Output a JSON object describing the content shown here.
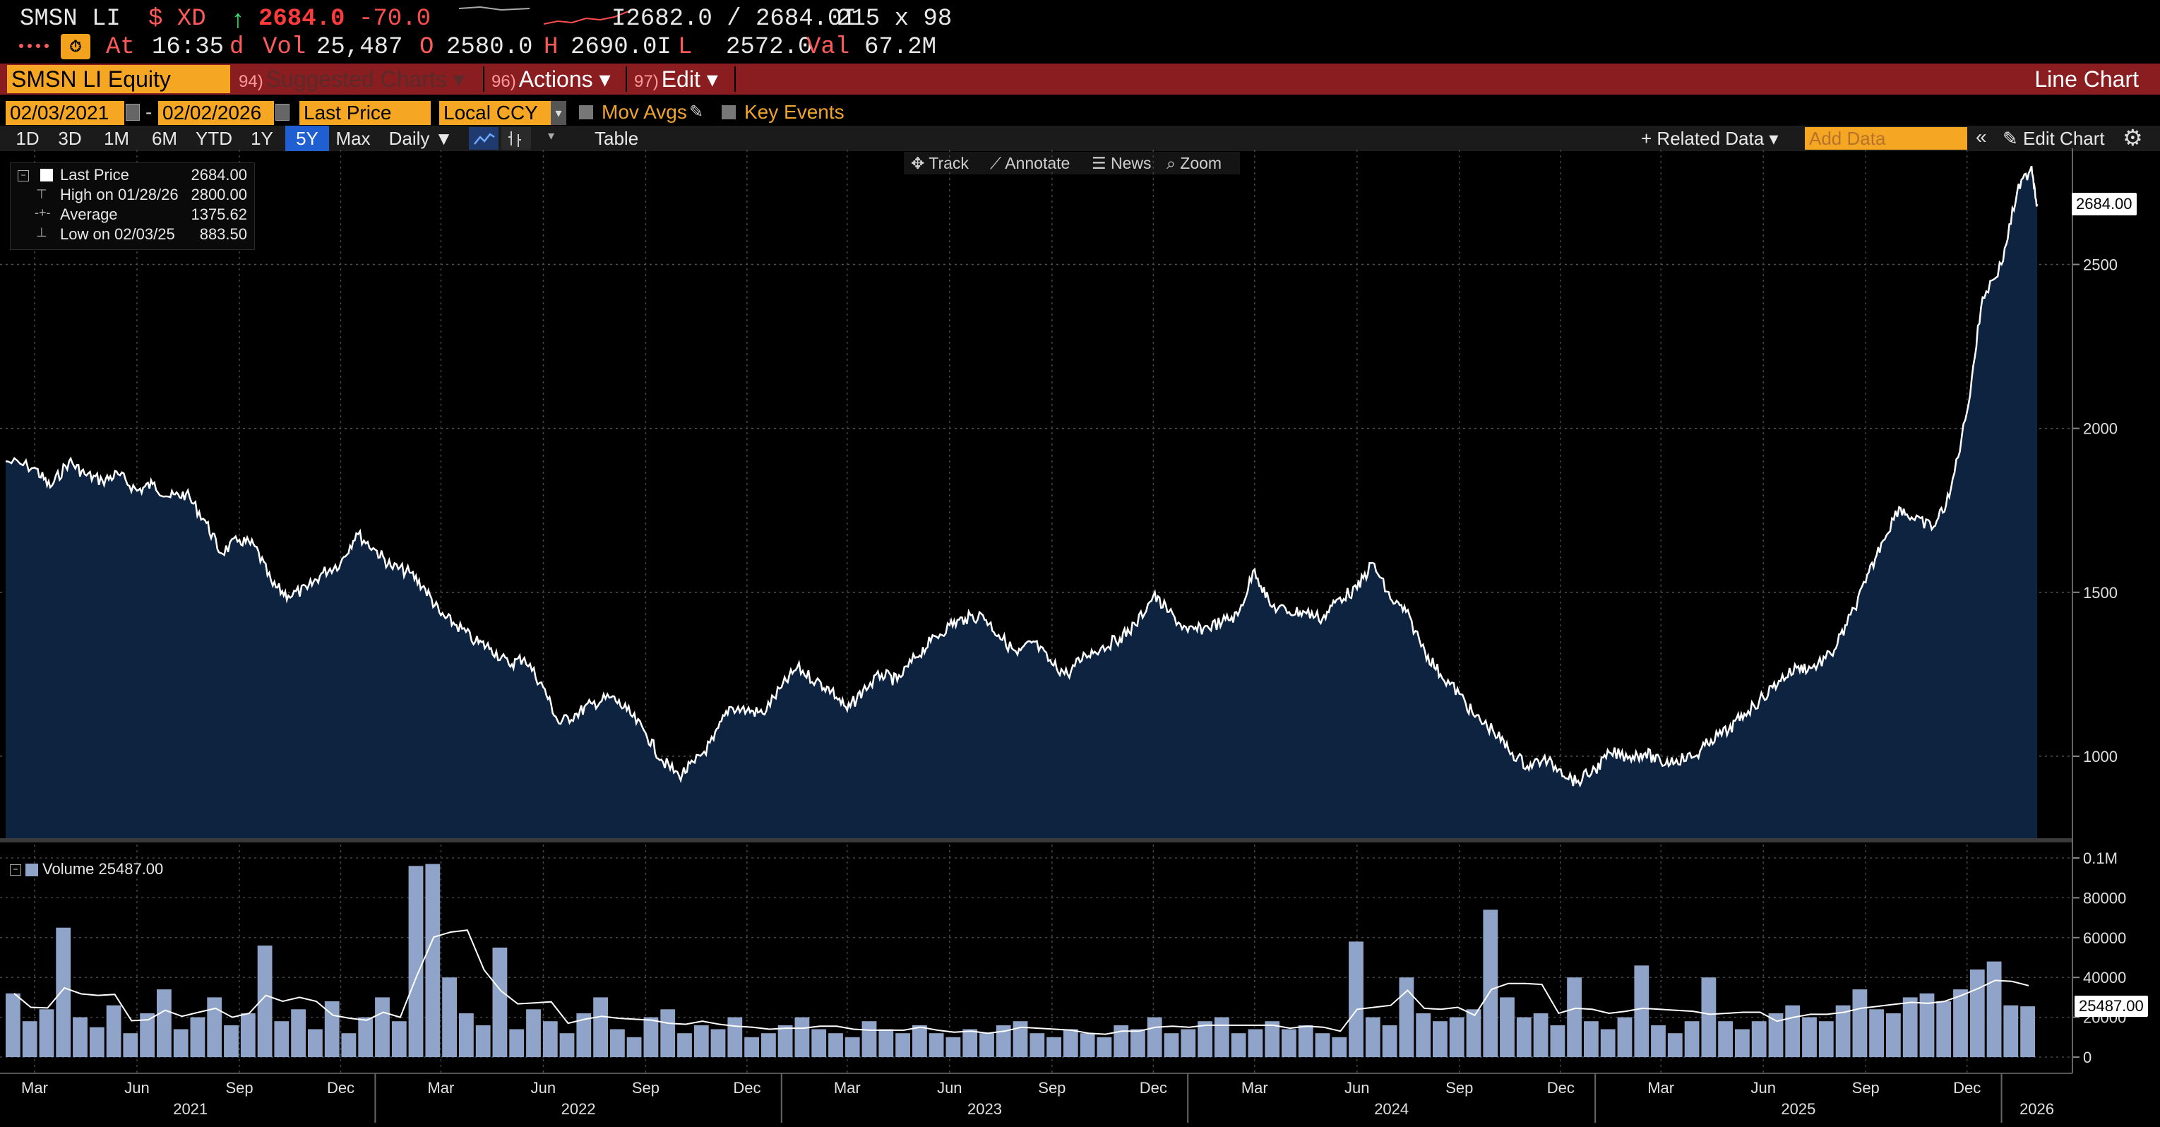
{
  "header": {
    "ticker": "SMSN LI",
    "currency": "$ XD",
    "arrow": "↑",
    "last_price": "2684.0",
    "change": "-70.0",
    "bid_ask": "I2682.0 / 2684.0I",
    "size": "215 x 98",
    "at_label": "At",
    "time": "16:35",
    "d_label": "d",
    "vol_label": "Vol",
    "vol_value": "25,487",
    "open_label": "O",
    "open_value": "2580.0",
    "high_label": "H",
    "high_value": "2690.0I",
    "low_label": "L",
    "low_value": "2572.0",
    "val_label": "Val",
    "val_value": "67.2M"
  },
  "toolbar": {
    "security": "SMSN LI Equity",
    "suggested_num": "94)",
    "suggested": "Suggested Charts",
    "actions_num": "96)",
    "actions": "Actions",
    "edit_num": "97)",
    "edit": "Edit",
    "chart_title": "Line Chart"
  },
  "options": {
    "start_date": "02/03/2021",
    "dash": "-",
    "end_date": "02/02/2026",
    "field": "Last Price",
    "currency": "Local CCY",
    "mov_avgs": "Mov Avgs",
    "key_events": "Key Events"
  },
  "timeframes": [
    "1D",
    "3D",
    "1M",
    "6M",
    "YTD",
    "1Y",
    "5Y",
    "Max"
  ],
  "active_timeframe": "5Y",
  "periodicity": "Daily",
  "table_label": "Table",
  "related_data": "Related Data",
  "add_data_placeholder": "Add Data",
  "edit_chart": "Edit Chart",
  "tools": {
    "track": "Track",
    "annotate": "Annotate",
    "news": "News",
    "zoom": "Zoom"
  },
  "legend": {
    "last_price_label": "Last Price",
    "last_price_value": "2684.00",
    "high_label": "High on 01/28/26",
    "high_value": "2800.00",
    "average_label": "Average",
    "average_value": "1375.62",
    "low_label": "Low on 02/03/25",
    "low_value": "883.50",
    "volume_label": "Volume",
    "volume_value": "25487.00"
  },
  "last_price_tag": "2684.00",
  "volume_tag": "25487.00",
  "colors": {
    "background": "#000000",
    "price_fill": "#0d2340",
    "price_line": "#ffffff",
    "volume_bars": "#8fa4c8",
    "volume_ma": "#ffffff",
    "accent_orange": "#f5a623",
    "toolbar_red": "#8a1d1f",
    "gain": "#35e36b",
    "loss": "#ff3b3b"
  },
  "chart_data": [
    {
      "type": "area",
      "series": [
        {
          "name": "Last Price",
          "x": [
            "2021-02-03",
            "2021-03-01",
            "2021-03-15",
            "2021-04-01",
            "2021-04-15",
            "2021-05-01",
            "2021-05-15",
            "2021-06-01",
            "2021-06-15",
            "2021-07-01",
            "2021-07-15",
            "2021-08-01",
            "2021-08-15",
            "2021-09-01",
            "2021-09-15",
            "2021-10-01",
            "2021-10-15",
            "2021-11-01",
            "2021-11-15",
            "2021-12-01",
            "2021-12-15",
            "2022-01-01",
            "2022-01-15",
            "2022-02-01",
            "2022-02-15",
            "2022-03-01",
            "2022-03-15",
            "2022-04-01",
            "2022-04-15",
            "2022-05-01",
            "2022-05-15",
            "2022-06-01",
            "2022-06-15",
            "2022-07-01",
            "2022-07-15",
            "2022-08-01",
            "2022-08-15",
            "2022-09-01",
            "2022-09-15",
            "2022-10-01",
            "2022-10-15",
            "2022-11-01",
            "2022-11-15",
            "2022-12-01",
            "2022-12-15",
            "2023-01-01",
            "2023-01-15",
            "2023-02-01",
            "2023-02-15",
            "2023-03-01",
            "2023-03-15",
            "2023-04-01",
            "2023-04-15",
            "2023-05-01",
            "2023-05-15",
            "2023-06-01",
            "2023-06-15",
            "2023-07-01",
            "2023-07-15",
            "2023-08-01",
            "2023-08-15",
            "2023-09-01",
            "2023-09-15",
            "2023-10-01",
            "2023-10-15",
            "2023-11-01",
            "2023-11-15",
            "2023-12-01",
            "2023-12-15",
            "2024-01-01",
            "2024-01-15",
            "2024-02-01",
            "2024-02-15",
            "2024-03-01",
            "2024-03-15",
            "2024-04-01",
            "2024-04-15",
            "2024-05-01",
            "2024-05-15",
            "2024-06-01",
            "2024-06-15",
            "2024-07-01",
            "2024-07-15",
            "2024-08-01",
            "2024-08-15",
            "2024-09-01",
            "2024-09-15",
            "2024-10-01",
            "2024-10-15",
            "2024-11-01",
            "2024-11-15",
            "2024-12-01",
            "2024-12-15",
            "2025-01-01",
            "2025-01-15",
            "2025-02-01",
            "2025-02-15",
            "2025-03-01",
            "2025-03-15",
            "2025-04-01",
            "2025-04-15",
            "2025-05-01",
            "2025-05-15",
            "2025-06-01",
            "2025-06-15",
            "2025-07-01",
            "2025-07-15",
            "2025-08-01",
            "2025-08-15",
            "2025-09-01",
            "2025-09-15",
            "2025-10-01",
            "2025-10-15",
            "2025-11-01",
            "2025-11-15",
            "2025-12-01",
            "2025-12-15",
            "2026-01-01",
            "2026-01-15",
            "2026-01-28",
            "2026-02-02"
          ],
          "values": [
            1900,
            1880,
            1820,
            1900,
            1860,
            1840,
            1860,
            1810,
            1830,
            1790,
            1800,
            1720,
            1620,
            1660,
            1640,
            1520,
            1490,
            1510,
            1560,
            1590,
            1680,
            1630,
            1580,
            1560,
            1510,
            1430,
            1400,
            1350,
            1330,
            1280,
            1300,
            1210,
            1100,
            1130,
            1160,
            1180,
            1140,
            1070,
            990,
            940,
            980,
            1050,
            1150,
            1140,
            1130,
            1210,
            1270,
            1230,
            1200,
            1140,
            1200,
            1250,
            1230,
            1300,
            1350,
            1400,
            1420,
            1430,
            1370,
            1310,
            1350,
            1280,
            1250,
            1310,
            1330,
            1360,
            1400,
            1490,
            1440,
            1380,
            1390,
            1410,
            1430,
            1570,
            1460,
            1440,
            1440,
            1420,
            1480,
            1510,
            1590,
            1480,
            1440,
            1320,
            1250,
            1190,
            1120,
            1080,
            1020,
            970,
            990,
            960,
            920,
            960,
            1010,
            1000,
            1010,
            980,
            990,
            1000,
            1050,
            1080,
            1130,
            1180,
            1230,
            1270,
            1270,
            1310,
            1400,
            1530,
            1650,
            1760,
            1720,
            1700,
            1790,
            2050,
            2400,
            2500,
            2720,
            2800,
            2684
          ]
        }
      ],
      "ylim": [
        750,
        2850
      ],
      "yticks": [
        1000,
        1500,
        2000,
        2500
      ],
      "xlabel": "",
      "ylabel": "",
      "grid": true
    },
    {
      "type": "bar",
      "series": [
        {
          "name": "Volume",
          "values": [
            32000,
            18000,
            24000,
            65000,
            20000,
            15000,
            26000,
            12000,
            22000,
            34000,
            14000,
            20000,
            30000,
            16000,
            22000,
            56000,
            18000,
            24000,
            14000,
            28000,
            12000,
            20000,
            30000,
            18000,
            96000,
            97000,
            40000,
            22000,
            16000,
            55000,
            14000,
            24000,
            18000,
            12000,
            22000,
            30000,
            14000,
            10000,
            20000,
            24000,
            12000,
            16000,
            14000,
            20000,
            10000,
            12000,
            16000,
            20000,
            14000,
            12000,
            10000,
            18000,
            14000,
            12000,
            16000,
            12000,
            10000,
            14000,
            12000,
            16000,
            18000,
            12000,
            10000,
            14000,
            12000,
            10000,
            16000,
            14000,
            20000,
            12000,
            14000,
            18000,
            20000,
            12000,
            14000,
            18000,
            14000,
            16000,
            12000,
            10000,
            58000,
            20000,
            16000,
            40000,
            22000,
            18000,
            20000,
            24000,
            74000,
            30000,
            20000,
            22000,
            16000,
            40000,
            18000,
            14000,
            20000,
            46000,
            16000,
            12000,
            18000,
            40000,
            18000,
            14000,
            18000,
            22000,
            26000,
            20000,
            18000,
            26000,
            34000,
            24000,
            22000,
            30000,
            32000,
            28000,
            34000,
            44000,
            48000,
            26000,
            25487
          ]
        }
      ],
      "yticks": [
        "0",
        "20000",
        "40000",
        "60000",
        "80000",
        "0.1M"
      ],
      "ylim": [
        0,
        100000
      ]
    }
  ],
  "x_axis": {
    "months": [
      "Mar",
      "Jun",
      "Sep",
      "Dec",
      "Mar",
      "Jun",
      "Sep",
      "Dec",
      "Mar",
      "Jun",
      "Sep",
      "Dec",
      "Mar",
      "Jun",
      "Sep",
      "Dec",
      "Mar",
      "Jun",
      "Sep",
      "Dec"
    ],
    "years": [
      "2021",
      "2022",
      "2023",
      "2024",
      "2025",
      "2026"
    ]
  }
}
